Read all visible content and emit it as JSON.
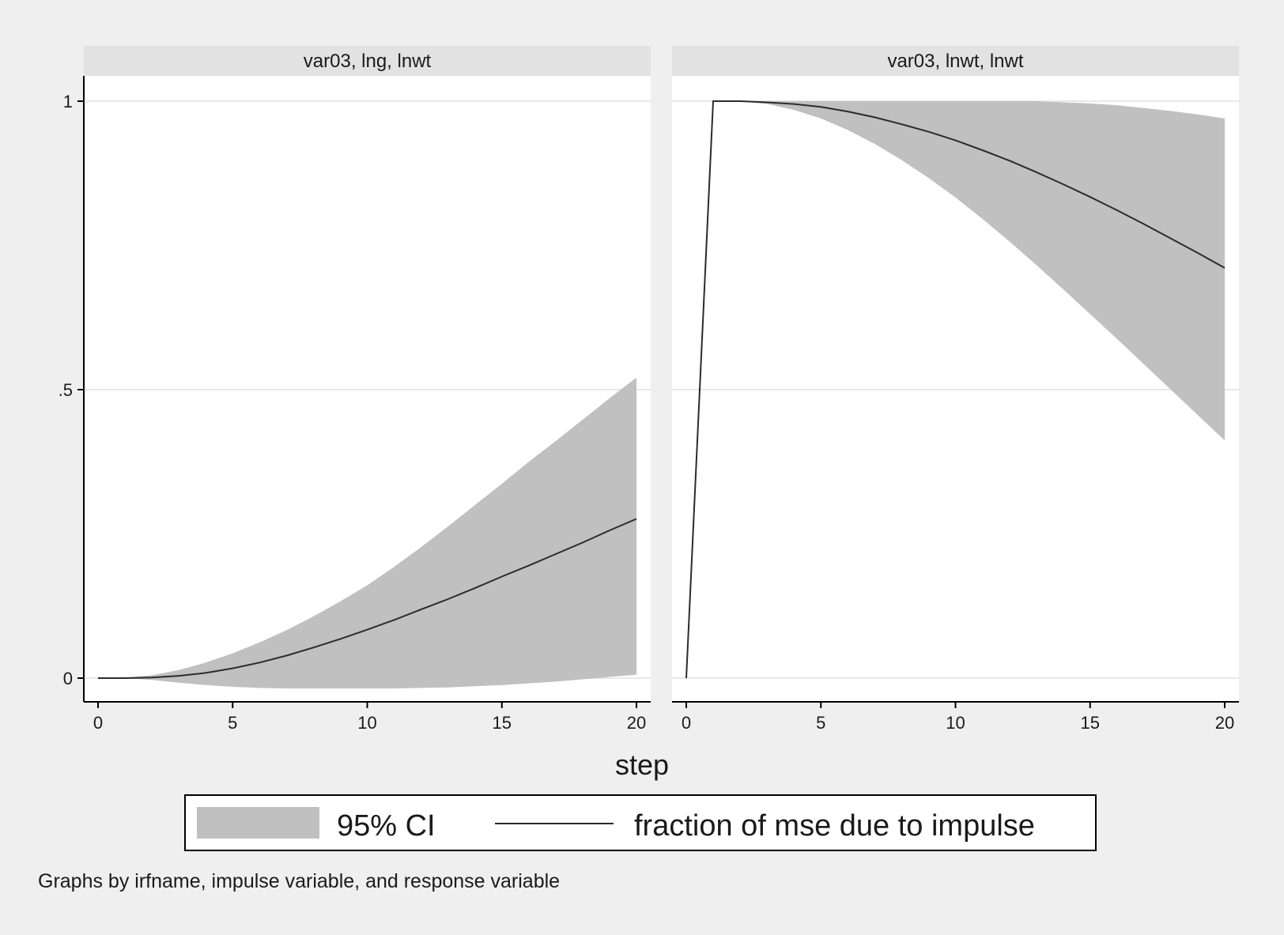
{
  "chart_data": {
    "type": "area",
    "xlabel": "step",
    "x_ticks": [
      0,
      5,
      10,
      15,
      20
    ],
    "y_ticks": [
      0,
      0.5,
      1
    ],
    "y_tick_labels": [
      "0",
      ".5",
      "1"
    ],
    "xlim": [
      0,
      20
    ],
    "ylim": [
      -0.04,
      1.04
    ],
    "grid": true,
    "legend": {
      "position": "bottom",
      "items": [
        {
          "label": "95% CI",
          "kind": "band",
          "color": "#c0c0c0"
        },
        {
          "label": "fraction of mse due to impulse",
          "kind": "line",
          "color": "#2b2b2b"
        }
      ]
    },
    "note": "Graphs by irfname, impulse variable, and response variable",
    "panels": [
      {
        "title": "var03, lng, lnwt",
        "x": [
          0,
          1,
          2,
          3,
          4,
          5,
          6,
          7,
          8,
          9,
          10,
          11,
          12,
          13,
          14,
          15,
          16,
          17,
          18,
          19,
          20
        ],
        "series": [
          {
            "name": "fraction of mse due to impulse",
            "values": [
              0,
              0,
              0.001,
              0.004,
              0.009,
              0.017,
              0.027,
              0.039,
              0.053,
              0.068,
              0.084,
              0.101,
              0.119,
              0.137,
              0.156,
              0.176,
              0.195,
              0.215,
              0.235,
              0.256,
              0.276
            ]
          },
          {
            "name": "95% CI lower",
            "values": [
              0,
              0,
              -0.003,
              -0.008,
              -0.012,
              -0.015,
              -0.017,
              -0.018,
              -0.018,
              -0.018,
              -0.018,
              -0.018,
              -0.017,
              -0.016,
              -0.014,
              -0.012,
              -0.009,
              -0.006,
              -0.002,
              0.002,
              0.006
            ]
          },
          {
            "name": "95% CI upper",
            "values": [
              0,
              0.001,
              0.005,
              0.014,
              0.027,
              0.043,
              0.062,
              0.083,
              0.107,
              0.133,
              0.161,
              0.193,
              0.227,
              0.263,
              0.3,
              0.337,
              0.375,
              0.411,
              0.448,
              0.485,
              0.521
            ]
          }
        ]
      },
      {
        "title": "var03, lnwt, lnwt",
        "x": [
          0,
          1,
          2,
          3,
          4,
          5,
          6,
          7,
          8,
          9,
          10,
          11,
          12,
          13,
          14,
          15,
          16,
          17,
          18,
          19,
          20
        ],
        "series": [
          {
            "name": "fraction of mse due to impulse",
            "values": [
              0,
              1,
              1,
              0.998,
              0.995,
              0.99,
              0.982,
              0.972,
              0.96,
              0.947,
              0.932,
              0.915,
              0.897,
              0.877,
              0.856,
              0.834,
              0.811,
              0.787,
              0.762,
              0.737,
              0.711
            ]
          },
          {
            "name": "95% CI lower",
            "values": [
              0,
              1,
              1,
              0.995,
              0.985,
              0.97,
              0.95,
              0.926,
              0.898,
              0.867,
              0.833,
              0.796,
              0.757,
              0.716,
              0.674,
              0.631,
              0.588,
              0.544,
              0.5,
              0.456,
              0.412
            ]
          },
          {
            "name": "95% CI upper",
            "values": [
              0,
              1,
              1,
              1,
              1,
              1,
              1,
              1,
              1,
              1,
              1,
              1,
              1,
              1,
              0.998,
              0.996,
              0.993,
              0.988,
              0.983,
              0.977,
              0.97
            ]
          }
        ]
      }
    ],
    "colors": {
      "band": "#c0c0c0",
      "line": "#2b2b2b",
      "grid": "#e8e8e8",
      "strip": "#e2e2e2",
      "background": "#efefef",
      "plot": "#ffffff"
    }
  }
}
